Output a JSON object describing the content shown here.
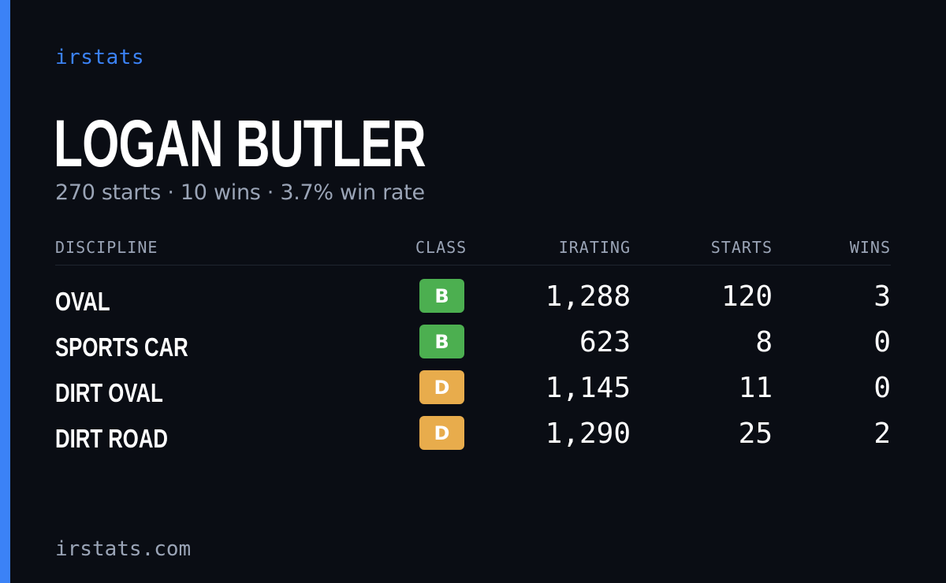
{
  "theme": {
    "background": "#0a0d14",
    "accent": "#3b82f6",
    "muted_text": "#9aa4b6",
    "class_colors": {
      "B": "#4caf50",
      "D": "#e8ac4c"
    }
  },
  "brand": "irstats",
  "player": {
    "name": "LOGAN BUTLER",
    "summary": "270 starts · 10 wins · 3.7% win rate"
  },
  "table": {
    "headers": {
      "discipline": "DISCIPLINE",
      "class": "CLASS",
      "irating": "IRATING",
      "starts": "STARTS",
      "wins": "WINS"
    },
    "rows": [
      {
        "discipline": "OVAL",
        "class": "B",
        "irating": "1,288",
        "starts": "120",
        "wins": "3"
      },
      {
        "discipline": "SPORTS CAR",
        "class": "B",
        "irating": "623",
        "starts": "8",
        "wins": "0"
      },
      {
        "discipline": "DIRT OVAL",
        "class": "D",
        "irating": "1,145",
        "starts": "11",
        "wins": "0"
      },
      {
        "discipline": "DIRT ROAD",
        "class": "D",
        "irating": "1,290",
        "starts": "25",
        "wins": "2"
      }
    ]
  },
  "footer": {
    "url": "irstats.com"
  }
}
